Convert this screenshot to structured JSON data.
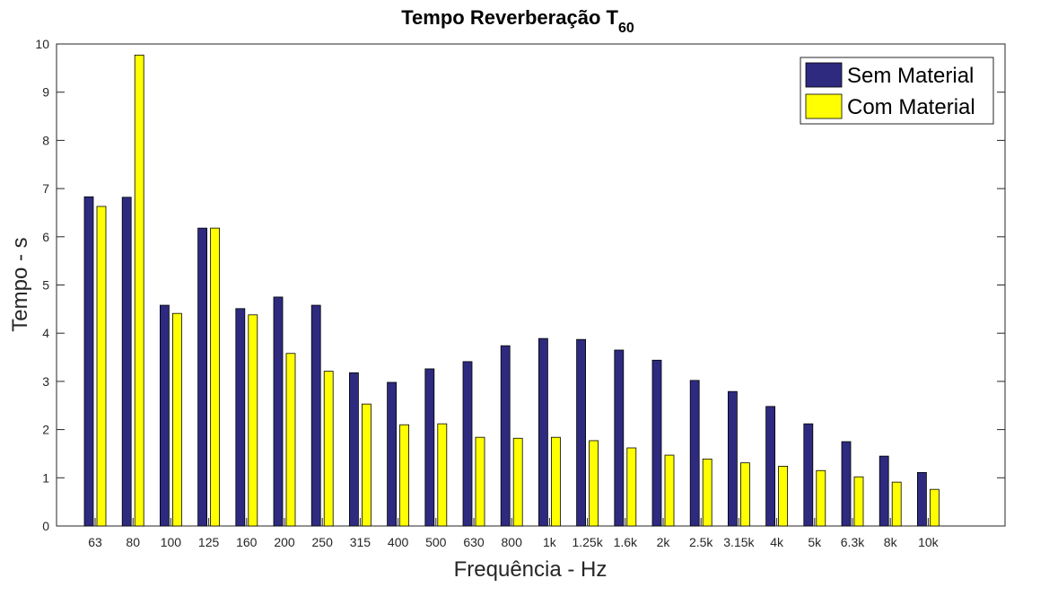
{
  "chart_data": {
    "type": "bar",
    "title": "Tempo Reverberação T",
    "title_subscript": "60",
    "xlabel": "Frequência - Hz",
    "ylabel": "Tempo - s",
    "ylim": [
      0,
      10
    ],
    "yticks": [
      0,
      1,
      2,
      3,
      4,
      5,
      6,
      7,
      8,
      9,
      10
    ],
    "grid": false,
    "legend_position": "top-right",
    "categories": [
      "63",
      "80",
      "100",
      "125",
      "160",
      "200",
      "250",
      "315",
      "400",
      "500",
      "630",
      "800",
      "1k",
      "1.25k",
      "1.6k",
      "2k",
      "2.5k",
      "3.15k",
      "4k",
      "5k",
      "6.3k",
      "8k",
      "10k"
    ],
    "series": [
      {
        "name": "Sem Material",
        "color": "#2e2a7f",
        "values": [
          6.83,
          6.82,
          4.58,
          6.18,
          4.51,
          4.75,
          4.58,
          3.18,
          2.98,
          3.26,
          3.41,
          3.74,
          3.89,
          3.87,
          3.65,
          3.44,
          3.02,
          2.79,
          2.48,
          2.12,
          1.75,
          1.45,
          1.11
        ]
      },
      {
        "name": "Com Material",
        "color": "#ffff00",
        "values": [
          6.63,
          9.77,
          4.41,
          6.18,
          4.38,
          3.58,
          3.21,
          2.53,
          2.1,
          2.12,
          1.84,
          1.82,
          1.84,
          1.77,
          1.62,
          1.47,
          1.39,
          1.31,
          1.24,
          1.15,
          1.02,
          0.91,
          0.76
        ]
      }
    ]
  }
}
